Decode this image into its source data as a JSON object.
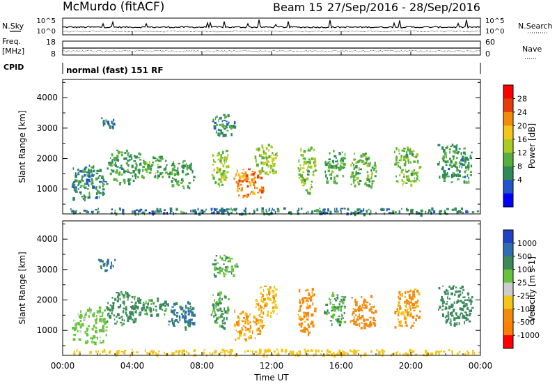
{
  "header": {
    "station": "McMurdo (fitACF)",
    "beam_info": "Beam 15",
    "date_range": "27/Sep/2016 - 28/Sep/2016"
  },
  "side_labels": {
    "nsky": "N.Sky",
    "nsearch": "N.Search",
    "freq_line1": "Freq.",
    "freq_line2": "[MHz]",
    "nave": "Nave",
    "cpid": "CPID",
    "mode_text": "normal (fast) 151 RF"
  },
  "chart_data": [
    {
      "type": "line",
      "name": "noise-panel",
      "left_axis_label": "N.Sky",
      "right_axis_label": "N.Search",
      "left_ticks": [
        "10^5",
        "10^0"
      ],
      "right_ticks": [
        "10^5",
        "10^0"
      ]
    },
    {
      "type": "line",
      "name": "frequency-panel",
      "left_axis_label": "Freq. [MHz]",
      "right_axis_label": "Nave",
      "left_ticks": [
        "18",
        "8"
      ],
      "right_ticks": [
        "60",
        "0"
      ]
    },
    {
      "type": "heatmap",
      "name": "power-panel",
      "ylabel": "Slant Range [km]",
      "ylim": [
        180,
        4600
      ],
      "y_ticks": [
        "1000",
        "2000",
        "3000",
        "4000"
      ],
      "colorbar_label": "Power [dB]",
      "colorbar_ticks": [
        "4",
        "8",
        "12",
        "16",
        "20",
        "24",
        "28"
      ],
      "colorbar_colors": [
        "#0000ff",
        "#2255cc",
        "#2e8b57",
        "#56b03c",
        "#a8cc25",
        "#f5c518",
        "#f28a0e",
        "#e83b0a",
        "#ff0000"
      ]
    },
    {
      "type": "heatmap",
      "name": "velocity-panel",
      "ylabel": "Slant Range [km]",
      "ylim": [
        180,
        4600
      ],
      "y_ticks": [
        "1000",
        "2000",
        "3000",
        "4000"
      ],
      "colorbar_label": "Velocity [m s-1]",
      "colorbar_ticks": [
        "1000",
        "500",
        "100",
        "25",
        "-25",
        "-100",
        "-500",
        "-1000"
      ],
      "colorbar_colors": [
        "#2040c8",
        "#2f6fb0",
        "#3a8a5a",
        "#66c43a",
        "#cccccc",
        "#f5c518",
        "#f28a0e",
        "#ff7f00",
        "#ff0000"
      ]
    }
  ],
  "time_axis": {
    "xlabel": "Time UT",
    "x_ticks": [
      "00:00",
      "04:00",
      "08:00",
      "12:00",
      "16:00",
      "20:00",
      "00:00"
    ]
  },
  "echo_regions": [
    {
      "t0": 0.5,
      "t1": 2.5,
      "r0": 600,
      "r1": 1800,
      "p": 10,
      "v": 40
    },
    {
      "t0": 2.5,
      "t1": 4.5,
      "r0": 1200,
      "r1": 2300,
      "p": 12,
      "v": 200
    },
    {
      "t0": 4.5,
      "t1": 6.0,
      "r0": 1400,
      "r1": 2100,
      "p": 13,
      "v": 150
    },
    {
      "t0": 6.0,
      "t1": 7.5,
      "r0": 1000,
      "r1": 2000,
      "p": 12,
      "v": 600
    },
    {
      "t0": 8.5,
      "t1": 9.5,
      "r0": 1100,
      "r1": 2300,
      "p": 16,
      "v": 120
    },
    {
      "t0": 9.8,
      "t1": 11.5,
      "r0": 700,
      "r1": 1700,
      "p": 26,
      "v": -150
    },
    {
      "t0": 11.0,
      "t1": 12.3,
      "r0": 1500,
      "r1": 2500,
      "p": 18,
      "v": -80
    },
    {
      "t0": 13.5,
      "t1": 14.5,
      "r0": 900,
      "r1": 2400,
      "p": 16,
      "v": -200
    },
    {
      "t0": 15.0,
      "t1": 16.2,
      "r0": 1200,
      "r1": 2300,
      "p": 13,
      "v": 130
    },
    {
      "t0": 16.5,
      "t1": 18.0,
      "r0": 1100,
      "r1": 2200,
      "p": 14,
      "v": -250
    },
    {
      "t0": 19.0,
      "t1": 20.5,
      "r0": 1100,
      "r1": 2400,
      "p": 15,
      "v": -120
    },
    {
      "t0": 21.5,
      "t1": 23.5,
      "r0": 1200,
      "r1": 2500,
      "p": 11,
      "v": 300
    },
    {
      "t0": 2.0,
      "t1": 3.0,
      "r0": 3000,
      "r1": 3400,
      "p": 9,
      "v": 600
    },
    {
      "t0": 8.5,
      "t1": 10.0,
      "r0": 2800,
      "r1": 3500,
      "p": 10,
      "v": 80
    },
    {
      "t0": 0.2,
      "t1": 24.0,
      "r0": 200,
      "r1": 400,
      "p": 9,
      "v": -60
    }
  ]
}
